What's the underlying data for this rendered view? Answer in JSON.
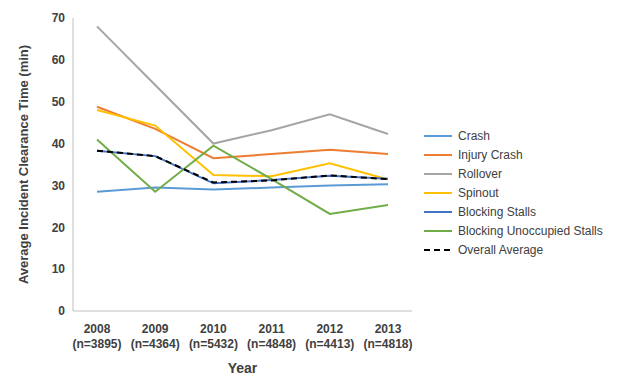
{
  "chart_data": {
    "type": "line",
    "x_label": "Year",
    "y_label": "Average Incident Clearance Time (min)",
    "categories": [
      "2008\n(n=3895)",
      "2009\n(n=4364)",
      "2010\n(n=5432)",
      "2011\n(n=4848)",
      "2012\n(n=4413)",
      "2013\n(n=4818)"
    ],
    "ylim": [
      0,
      70
    ],
    "yticks": [
      0,
      10,
      20,
      30,
      40,
      50,
      60,
      70
    ],
    "grid": false,
    "legend": "right",
    "series": [
      {
        "name": "Crash",
        "color": "#5b9bd5",
        "marker": "none",
        "line_style": "solid",
        "values": [
          28.5,
          29.5,
          29,
          29.5,
          30,
          30.3
        ]
      },
      {
        "name": "Injury Crash",
        "color": "#ed7d31",
        "marker": "none",
        "line_style": "solid",
        "values": [
          48.8,
          43.5,
          36.5,
          37.5,
          38.5,
          37.5
        ]
      },
      {
        "name": "Rollover",
        "color": "#a5a5a5",
        "marker": "none",
        "line_style": "solid",
        "values": [
          68,
          54,
          40,
          43.2,
          47,
          42.3
        ]
      },
      {
        "name": "Spinout",
        "color": "#ffc000",
        "marker": "none",
        "line_style": "solid",
        "values": [
          48,
          44.3,
          32.5,
          32.2,
          35.3,
          31.4
        ]
      },
      {
        "name": "Blocking Stalls",
        "color": "#4472c4",
        "marker": "none",
        "line_style": "solid",
        "values": [
          38.3,
          37,
          30.5,
          31.3,
          32.3,
          31.6
        ]
      },
      {
        "name": "Blocking Unoccupied Stalls",
        "color": "#70ad47",
        "marker": "none",
        "line_style": "solid",
        "values": [
          41,
          28.5,
          39.5,
          31.5,
          23.2,
          25.3
        ]
      },
      {
        "name": "Overall Average",
        "color": "#000000",
        "marker": "none",
        "line_style": "dashed",
        "values": [
          38.3,
          37,
          30.7,
          31.2,
          32.4,
          31.5
        ]
      }
    ]
  }
}
